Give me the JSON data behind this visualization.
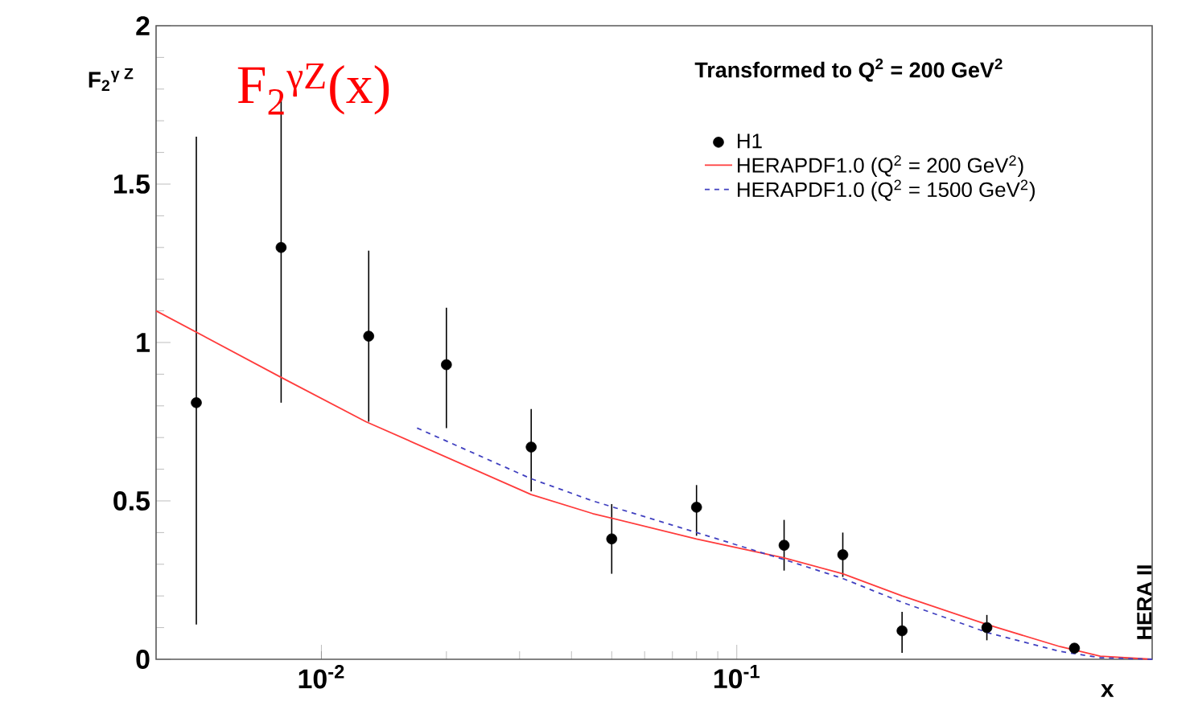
{
  "chart_data": {
    "type": "scatter",
    "xlabel": "x",
    "ylabel": "F$_{2}$$^{γ Z}$",
    "annotations": [
      "Transformed to Q$^{2}$ = 200 GeV$^{2}$",
      "F$_{2}$$^{γZ}$(x)",
      "HERA II"
    ],
    "log": "x",
    "xlim": [
      0.004,
      1
    ],
    "ylim": [
      0,
      2
    ],
    "xticks": [
      {
        "value": 0.01,
        "label": "10$^{-2}$"
      },
      {
        "value": 0.1,
        "label": "10$^{-1}$"
      }
    ],
    "yticks": [
      0,
      0.5,
      1,
      1.5,
      2
    ],
    "legend": "top right",
    "series": [
      {
        "name": "H1",
        "marker": "circle",
        "color": "#000000",
        "x": [
          0.005,
          0.008,
          0.013,
          0.02,
          0.032,
          0.05,
          0.08,
          0.13,
          0.18,
          0.25,
          0.4,
          0.65
        ],
        "values": [
          0.81,
          1.3,
          1.02,
          0.93,
          0.67,
          0.38,
          0.48,
          0.36,
          0.33,
          0.09,
          0.1,
          0.035
        ],
        "errors": [
          [
            0.11,
            1.65
          ],
          [
            0.81,
            1.79
          ],
          [
            0.75,
            1.29
          ],
          [
            0.73,
            1.11
          ],
          [
            0.53,
            0.79
          ],
          [
            0.27,
            0.49
          ],
          [
            0.39,
            0.55
          ],
          [
            0.28,
            0.44
          ],
          [
            0.26,
            0.4
          ],
          [
            0.02,
            0.15
          ],
          [
            0.06,
            0.14
          ],
          null
        ]
      },
      {
        "name": "HERAPDF1.0 (Q$^{2}$ = 200 GeV$^{2}$)",
        "type": "line",
        "marker": "none",
        "line_style": "solid",
        "color": "#ff3b3b",
        "x": [
          0.004,
          0.008,
          0.0128,
          0.032,
          0.045,
          0.08,
          0.13,
          0.18,
          0.25,
          0.4,
          0.6,
          0.75,
          1
        ],
        "values": [
          1.1,
          0.89,
          0.75,
          0.52,
          0.46,
          0.38,
          0.32,
          0.27,
          0.2,
          0.11,
          0.04,
          0.01,
          0
        ]
      },
      {
        "name": "HERAPDF1.0 (Q$^{2}$ = 1500 GeV$^{2}$)",
        "type": "line",
        "marker": "none",
        "line_style": "dashed",
        "color": "#4040c0",
        "x": [
          0.017,
          0.032,
          0.045,
          0.08,
          0.13,
          0.18,
          0.25,
          0.4,
          0.6,
          0.75,
          1
        ],
        "values": [
          0.73,
          0.57,
          0.5,
          0.4,
          0.315,
          0.255,
          0.18,
          0.085,
          0.025,
          0.005,
          0
        ]
      }
    ]
  }
}
